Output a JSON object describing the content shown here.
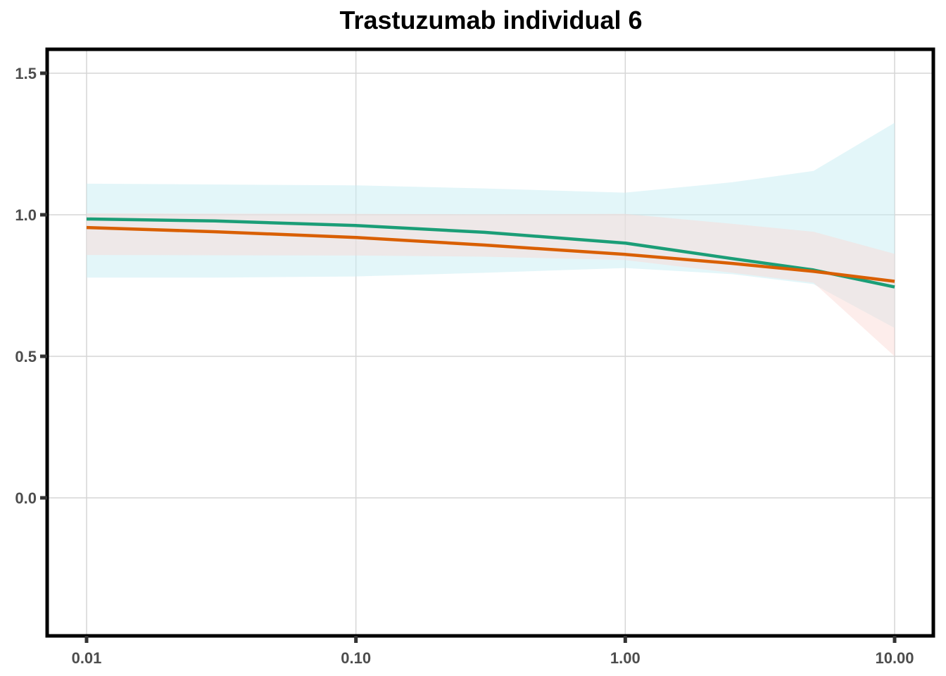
{
  "chart_data": {
    "type": "line",
    "title": "Trastuzumab individual 6",
    "xlabel": "",
    "ylabel": "",
    "x_scale": "log10",
    "xlim": [
      0.01,
      10.0
    ],
    "ylim": [
      -0.45,
      1.58
    ],
    "grid": true,
    "legend": "none",
    "x_ticks": [
      {
        "value": 0.01,
        "label": "0.01"
      },
      {
        "value": 0.1,
        "label": "0.10"
      },
      {
        "value": 1.0,
        "label": "1.00"
      },
      {
        "value": 10.0,
        "label": "10.00"
      }
    ],
    "y_ticks": [
      {
        "value": 0.0,
        "label": "0.0"
      },
      {
        "value": 0.5,
        "label": "0.5"
      },
      {
        "value": 1.0,
        "label": "1.0"
      },
      {
        "value": 1.5,
        "label": "1.5"
      }
    ],
    "series": [
      {
        "color": "#1b9e77",
        "band_color": "#c8eef3",
        "band_opacity": 0.5,
        "x": [
          0.01,
          0.03,
          0.1,
          0.3,
          1.0,
          2.5,
          5.0,
          10.0
        ],
        "y": [
          0.985,
          0.978,
          0.962,
          0.938,
          0.9,
          0.845,
          0.805,
          0.745
        ],
        "lower": [
          0.778,
          0.778,
          0.782,
          0.795,
          0.812,
          0.79,
          0.755,
          0.6
        ],
        "upper": [
          1.11,
          1.107,
          1.104,
          1.093,
          1.078,
          1.115,
          1.155,
          1.325
        ]
      },
      {
        "color": "#d95f02",
        "band_color": "#fbd8d3",
        "band_opacity": 0.45,
        "x": [
          0.01,
          0.03,
          0.1,
          0.3,
          1.0,
          2.5,
          5.0,
          10.0
        ],
        "y": [
          0.955,
          0.94,
          0.92,
          0.893,
          0.86,
          0.828,
          0.8,
          0.765
        ],
        "lower": [
          0.858,
          0.857,
          0.856,
          0.852,
          0.84,
          0.795,
          0.76,
          0.5
        ],
        "upper": [
          1.005,
          1.004,
          1.003,
          1.002,
          1.003,
          0.968,
          0.94,
          0.862
        ]
      }
    ]
  }
}
